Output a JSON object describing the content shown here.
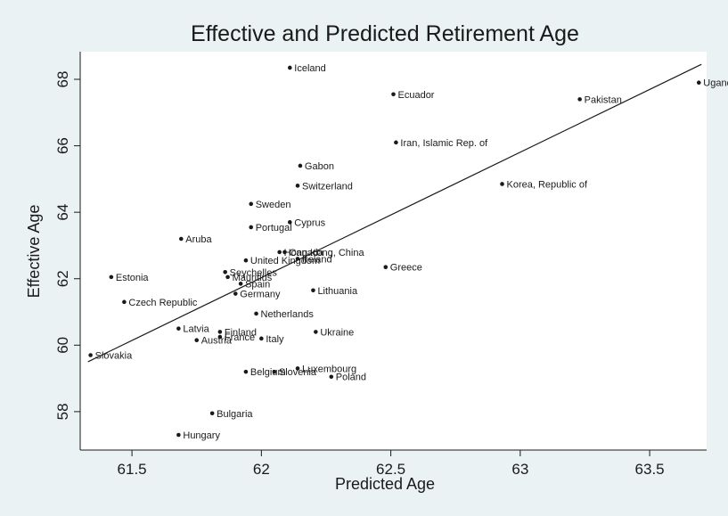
{
  "chart_data": {
    "type": "scatter",
    "title": "Effective and Predicted Retirement Age",
    "xlabel": "Predicted Age",
    "ylabel": "Effective Age",
    "xlim": [
      61.3,
      63.72
    ],
    "ylim": [
      56.8,
      88.0
    ],
    "xticks": [
      61.5,
      62,
      62.5,
      63,
      63.5
    ],
    "xtick_labels": [
      "61.5",
      "62",
      "62.5",
      "63",
      "63.5"
    ],
    "yticks": [
      58,
      60,
      62,
      64,
      66,
      68
    ],
    "ytick_labels": [
      "58",
      "60",
      "62",
      "64",
      "66",
      "68"
    ],
    "grid": false,
    "legend": "none",
    "colors": {
      "background": "#eaf2f3",
      "plot_area": "#ffffff",
      "points": "#1a1a1a",
      "fit_line": "#1a1a1a"
    },
    "points": [
      {
        "label": "Iceland",
        "x": 62.11,
        "y": 68.35
      },
      {
        "label": "Ecuador",
        "x": 62.51,
        "y": 67.55
      },
      {
        "label": "Pakistan",
        "x": 63.23,
        "y": 67.4
      },
      {
        "label": "Uganda",
        "x": 63.69,
        "y": 67.9
      },
      {
        "label": "Iran, Islamic Rep. of",
        "x": 62.52,
        "y": 66.1
      },
      {
        "label": "Gabon",
        "x": 62.15,
        "y": 65.4
      },
      {
        "label": "Switzerland",
        "x": 62.14,
        "y": 64.8
      },
      {
        "label": "Korea, Republic of",
        "x": 62.93,
        "y": 64.85
      },
      {
        "label": "Sweden",
        "x": 61.96,
        "y": 64.25
      },
      {
        "label": "Cyprus",
        "x": 62.11,
        "y": 63.7
      },
      {
        "label": "Portugal",
        "x": 61.96,
        "y": 63.55
      },
      {
        "label": "Aruba",
        "x": 61.69,
        "y": 63.2
      },
      {
        "label": "Hong Kong, China",
        "x": 62.07,
        "y": 62.8
      },
      {
        "label": "Canada",
        "x": 62.09,
        "y": 62.8
      },
      {
        "label": "Ireland",
        "x": 62.14,
        "y": 62.6
      },
      {
        "label": "United Kingdom",
        "x": 61.94,
        "y": 62.55
      },
      {
        "label": "Greece",
        "x": 62.48,
        "y": 62.35
      },
      {
        "label": "Estonia",
        "x": 61.42,
        "y": 62.05
      },
      {
        "label": "Seychelles",
        "x": 61.86,
        "y": 62.2
      },
      {
        "label": "Mauritius",
        "x": 61.87,
        "y": 62.05
      },
      {
        "label": "Spain",
        "x": 61.92,
        "y": 61.85
      },
      {
        "label": "Lithuania",
        "x": 62.2,
        "y": 61.65
      },
      {
        "label": "Germany",
        "x": 61.9,
        "y": 61.55
      },
      {
        "label": "Czech Republic",
        "x": 61.47,
        "y": 61.3
      },
      {
        "label": "Netherlands",
        "x": 61.98,
        "y": 60.95
      },
      {
        "label": "Latvia",
        "x": 61.68,
        "y": 60.5
      },
      {
        "label": "Finland",
        "x": 61.84,
        "y": 60.4
      },
      {
        "label": "Ukraine",
        "x": 62.21,
        "y": 60.4
      },
      {
        "label": "France",
        "x": 61.84,
        "y": 60.25
      },
      {
        "label": "Italy",
        "x": 62.0,
        "y": 60.2
      },
      {
        "label": "Austria",
        "x": 61.75,
        "y": 60.15
      },
      {
        "label": "Slovakia",
        "x": 61.34,
        "y": 59.7
      },
      {
        "label": "Luxembourg",
        "x": 62.14,
        "y": 59.3
      },
      {
        "label": "Belgium",
        "x": 61.94,
        "y": 59.2
      },
      {
        "label": "Slovenia",
        "x": 62.05,
        "y": 59.2
      },
      {
        "label": "Poland",
        "x": 62.27,
        "y": 59.05
      },
      {
        "label": "Bulgaria",
        "x": 61.81,
        "y": 57.95
      },
      {
        "label": "Hungary",
        "x": 61.68,
        "y": 57.3
      }
    ],
    "fit_line": {
      "x": [
        61.33,
        63.7
      ],
      "y": [
        59.5,
        68.45
      ]
    }
  }
}
